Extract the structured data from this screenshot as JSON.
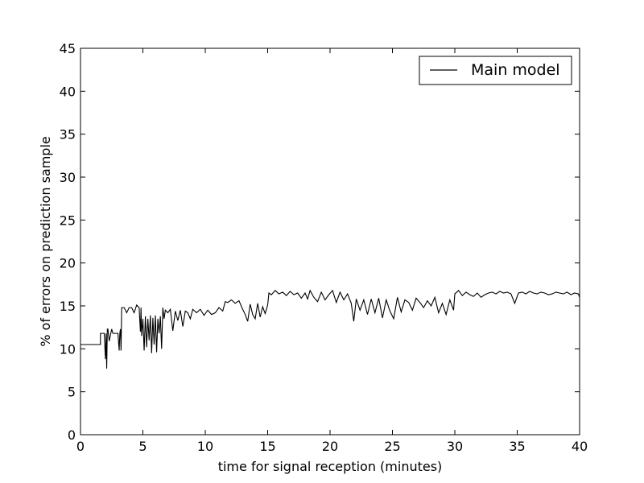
{
  "chart_data": {
    "type": "line",
    "title": "",
    "xlabel": "time for signal reception (minutes)",
    "ylabel": "% of errors on prediction sample",
    "xlim": [
      0,
      40
    ],
    "ylim": [
      0,
      45
    ],
    "xticks": [
      0,
      5,
      10,
      15,
      20,
      25,
      30,
      35,
      40
    ],
    "yticks": [
      0,
      5,
      10,
      15,
      20,
      25,
      30,
      35,
      40,
      45
    ],
    "grid": false,
    "legend_position": "top-right",
    "line_color": "#000000",
    "series": [
      {
        "name": "Main model",
        "x": [
          0,
          1.6,
          1.6,
          1.7,
          1.8,
          1.9,
          2.0,
          2.05,
          2.1,
          2.15,
          2.2,
          2.3,
          2.5,
          2.6,
          2.7,
          2.8,
          3.0,
          3.1,
          3.15,
          3.2,
          3.25,
          3.3,
          3.5,
          3.7,
          3.9,
          4.1,
          4.3,
          4.5,
          4.7,
          4.8,
          4.85,
          4.9,
          5.0,
          5.1,
          5.2,
          5.3,
          5.4,
          5.5,
          5.6,
          5.7,
          5.8,
          5.9,
          6.0,
          6.1,
          6.2,
          6.3,
          6.4,
          6.5,
          6.6,
          6.7,
          6.8,
          7.0,
          7.2,
          7.4,
          7.6,
          7.8,
          8.0,
          8.2,
          8.4,
          8.6,
          8.8,
          9.0,
          9.3,
          9.6,
          9.9,
          10.2,
          10.5,
          10.8,
          11.1,
          11.4,
          11.6,
          11.8,
          12.1,
          12.4,
          12.7,
          13.0,
          13.2,
          13.4,
          13.6,
          13.8,
          14.0,
          14.2,
          14.4,
          14.6,
          14.8,
          15.0,
          15.1,
          15.3,
          15.6,
          15.9,
          16.2,
          16.5,
          16.8,
          17.1,
          17.4,
          17.7,
          18.0,
          18.2,
          18.4,
          18.7,
          19.0,
          19.3,
          19.6,
          19.9,
          20.2,
          20.5,
          20.8,
          21.1,
          21.4,
          21.7,
          21.9,
          22.1,
          22.4,
          22.7,
          23.0,
          23.3,
          23.6,
          23.9,
          24.2,
          24.5,
          24.8,
          25.1,
          25.4,
          25.7,
          26.0,
          26.3,
          26.6,
          26.9,
          27.2,
          27.5,
          27.8,
          28.1,
          28.4,
          28.7,
          29.0,
          29.3,
          29.6,
          29.9,
          30.0,
          30.3,
          30.6,
          30.9,
          31.2,
          31.5,
          31.8,
          32.1,
          32.4,
          32.7,
          33.0,
          33.3,
          33.6,
          33.9,
          34.2,
          34.5,
          34.8,
          35.1,
          35.4,
          35.7,
          36.0,
          36.3,
          36.6,
          36.9,
          37.2,
          37.5,
          37.8,
          38.1,
          38.4,
          38.7,
          39.0,
          39.3,
          39.6,
          39.9,
          40.0
        ],
        "values": [
          10.5,
          10.5,
          11.8,
          11.8,
          11.8,
          11.8,
          8.8,
          11.8,
          7.7,
          12.3,
          12.3,
          10.9,
          12.3,
          11.8,
          11.8,
          11.8,
          11.8,
          9.8,
          11.8,
          12.3,
          9.8,
          14.8,
          14.8,
          14.2,
          14.8,
          14.8,
          14.2,
          15.1,
          14.8,
          12.0,
          14.8,
          11.5,
          13.5,
          9.8,
          13.8,
          10.2,
          13.5,
          11.0,
          13.9,
          9.5,
          13.6,
          10.5,
          13.9,
          9.6,
          13.5,
          11.8,
          13.8,
          10.0,
          14.8,
          13.5,
          14.5,
          14.2,
          14.6,
          12.1,
          14.4,
          13.3,
          14.5,
          12.6,
          14.4,
          14.2,
          13.5,
          14.6,
          14.2,
          14.6,
          13.9,
          14.5,
          14.0,
          14.2,
          14.8,
          14.4,
          15.5,
          15.4,
          15.7,
          15.3,
          15.6,
          14.6,
          14.0,
          13.2,
          15.2,
          14.0,
          13.5,
          15.3,
          13.7,
          14.9,
          14.1,
          15.1,
          16.5,
          16.3,
          16.8,
          16.4,
          16.6,
          16.2,
          16.7,
          16.3,
          16.5,
          15.9,
          16.5,
          15.8,
          16.8,
          16.0,
          15.5,
          16.6,
          15.7,
          16.3,
          16.8,
          15.4,
          16.6,
          15.7,
          16.4,
          15.3,
          13.2,
          15.8,
          14.5,
          15.7,
          14.0,
          15.8,
          14.2,
          15.9,
          13.6,
          15.7,
          14.4,
          13.5,
          16.0,
          14.3,
          15.7,
          15.4,
          14.5,
          15.9,
          15.4,
          14.8,
          15.6,
          15.0,
          16.0,
          14.2,
          15.3,
          14.0,
          15.7,
          14.5,
          16.4,
          16.8,
          16.2,
          16.6,
          16.3,
          16.1,
          16.5,
          16.0,
          16.3,
          16.5,
          16.6,
          16.4,
          16.7,
          16.5,
          16.6,
          16.4,
          15.3,
          16.5,
          16.6,
          16.4,
          16.7,
          16.5,
          16.4,
          16.6,
          16.5,
          16.3,
          16.4,
          16.6,
          16.5,
          16.4,
          16.6,
          16.3,
          16.5,
          16.4,
          16.0
        ]
      }
    ]
  }
}
